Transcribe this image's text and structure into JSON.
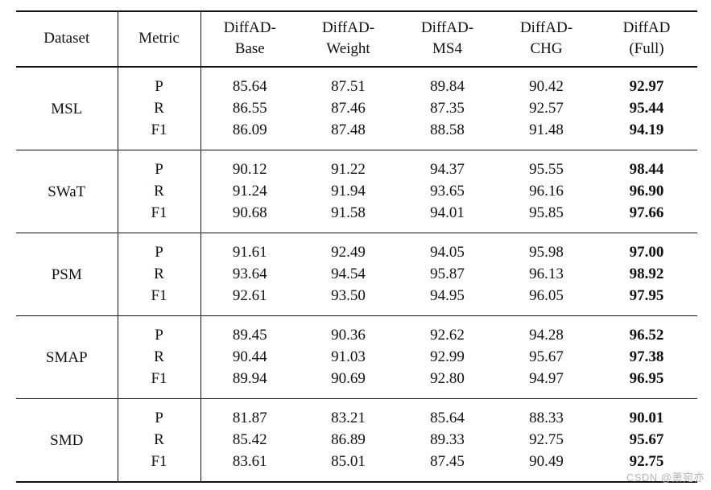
{
  "table": {
    "columns": [
      {
        "label": "Dataset"
      },
      {
        "label": "Metric"
      },
      {
        "label": "DiffAD-\nBase"
      },
      {
        "label": "DiffAD-\nWeight"
      },
      {
        "label": "DiffAD-\nMS4"
      },
      {
        "label": "DiffAD-\nCHG"
      },
      {
        "label": "DiffAD\n(Full)"
      }
    ],
    "bold_column_label": "DiffAD (Full)",
    "groups": [
      {
        "dataset": "MSL",
        "rows": [
          {
            "metric": "P",
            "values": [
              "85.64",
              "87.51",
              "89.84",
              "90.42",
              "92.97"
            ]
          },
          {
            "metric": "R",
            "values": [
              "86.55",
              "87.46",
              "87.35",
              "92.57",
              "95.44"
            ]
          },
          {
            "metric": "F1",
            "values": [
              "86.09",
              "87.48",
              "88.58",
              "91.48",
              "94.19"
            ]
          }
        ]
      },
      {
        "dataset": "SWaT",
        "rows": [
          {
            "metric": "P",
            "values": [
              "90.12",
              "91.22",
              "94.37",
              "95.55",
              "98.44"
            ]
          },
          {
            "metric": "R",
            "values": [
              "91.24",
              "91.94",
              "93.65",
              "96.16",
              "96.90"
            ]
          },
          {
            "metric": "F1",
            "values": [
              "90.68",
              "91.58",
              "94.01",
              "95.85",
              "97.66"
            ]
          }
        ]
      },
      {
        "dataset": "PSM",
        "rows": [
          {
            "metric": "P",
            "values": [
              "91.61",
              "92.49",
              "94.05",
              "95.98",
              "97.00"
            ]
          },
          {
            "metric": "R",
            "values": [
              "93.64",
              "94.54",
              "95.87",
              "96.13",
              "98.92"
            ]
          },
          {
            "metric": "F1",
            "values": [
              "92.61",
              "93.50",
              "94.95",
              "96.05",
              "97.95"
            ]
          }
        ]
      },
      {
        "dataset": "SMAP",
        "rows": [
          {
            "metric": "P",
            "values": [
              "89.45",
              "90.36",
              "92.62",
              "94.28",
              "96.52"
            ]
          },
          {
            "metric": "R",
            "values": [
              "90.44",
              "91.03",
              "92.99",
              "95.67",
              "97.38"
            ]
          },
          {
            "metric": "F1",
            "values": [
              "89.94",
              "90.69",
              "92.80",
              "94.97",
              "96.95"
            ]
          }
        ]
      },
      {
        "dataset": "SMD",
        "rows": [
          {
            "metric": "P",
            "values": [
              "81.87",
              "83.21",
              "85.64",
              "88.33",
              "90.01"
            ]
          },
          {
            "metric": "R",
            "values": [
              "85.42",
              "86.89",
              "89.33",
              "92.75",
              "95.67"
            ]
          },
          {
            "metric": "F1",
            "values": [
              "83.61",
              "85.01",
              "87.45",
              "90.49",
              "92.75"
            ]
          }
        ]
      }
    ]
  },
  "watermark": {
    "text": "CSDN @萧宛亦",
    "color": "#b6b3b7"
  }
}
